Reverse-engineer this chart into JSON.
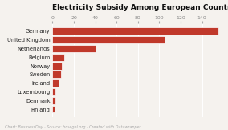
{
  "title": "Electricity Subsidy Among European Countries (€bn)",
  "countries": [
    "Germany",
    "United Kingdom",
    "Netherlands",
    "Belgium",
    "Norway",
    "Sweden",
    "Ireland",
    "Luxembourg",
    "Denmark",
    "Finland"
  ],
  "values": [
    155,
    105,
    40,
    11,
    9,
    8,
    6,
    3,
    2.5,
    2
  ],
  "bar_color": "#c0392b",
  "bg_color": "#f5f2ee",
  "title_fontsize": 6.5,
  "tick_fontsize": 4.5,
  "label_fontsize": 4.8,
  "caption": "Chart: BusinessDay · Source: bruegel.org · Created with Datawrapper",
  "caption_fontsize": 3.5,
  "xlim": [
    0,
    160
  ],
  "xticks": [
    0,
    20,
    40,
    60,
    80,
    100,
    120,
    140
  ]
}
